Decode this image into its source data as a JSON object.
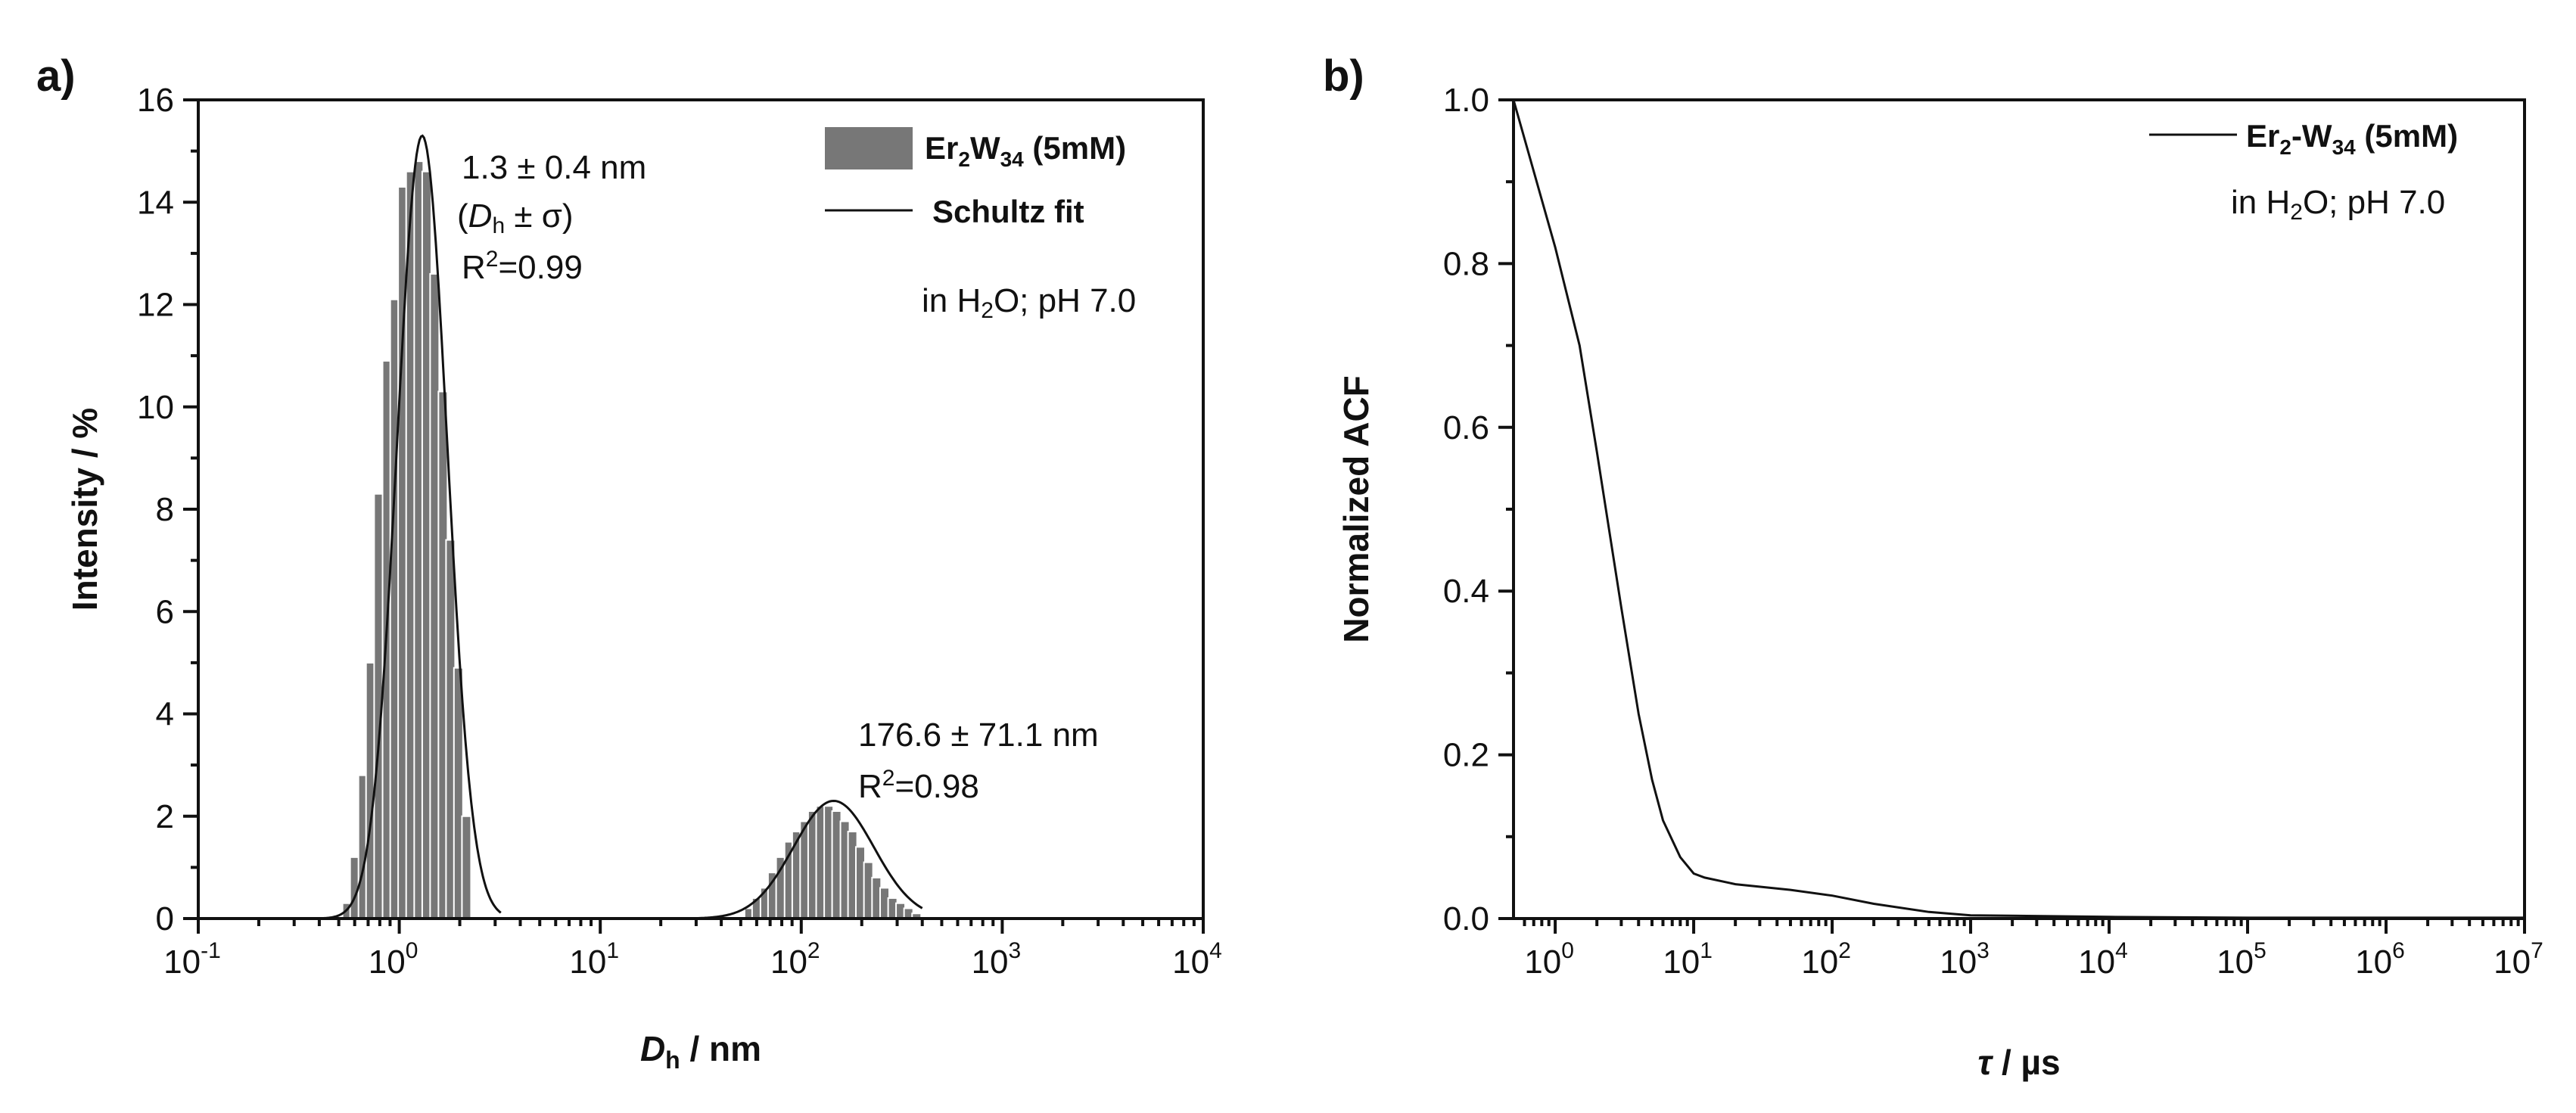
{
  "chart_data": [
    {
      "panel": "a)",
      "type": "bar",
      "xscale": "log",
      "xlim": [
        0.1,
        10000
      ],
      "ylim": [
        0,
        16
      ],
      "xlabel": {
        "italic": "D",
        "sub": "h",
        "rest": " / nm"
      },
      "ylabel": "Intensity / %",
      "xticks": [
        {
          "value": 0.1,
          "base": "10",
          "exp": "-1"
        },
        {
          "value": 1,
          "base": "10",
          "exp": "0"
        },
        {
          "value": 10,
          "base": "10",
          "exp": "1"
        },
        {
          "value": 100,
          "base": "10",
          "exp": "2"
        },
        {
          "value": 1000,
          "base": "10",
          "exp": "3"
        },
        {
          "value": 10000,
          "base": "10",
          "exp": "4"
        }
      ],
      "yticks": [
        0,
        2,
        4,
        6,
        8,
        10,
        12,
        14,
        16
      ],
      "series": [
        {
          "name": "Er2W34 (5mM)",
          "kind": "histogram",
          "x": [
            0.55,
            0.6,
            0.66,
            0.72,
            0.79,
            0.87,
            0.95,
            1.04,
            1.14,
            1.25,
            1.37,
            1.5,
            1.65,
            1.8,
            1.97,
            2.16,
            55,
            60,
            66,
            72,
            79,
            87,
            95,
            104,
            114,
            125,
            137,
            150,
            165,
            180,
            197,
            216,
            237,
            260,
            285,
            312,
            342,
            375
          ],
          "values": [
            0.3,
            1.2,
            2.8,
            5.0,
            8.3,
            10.9,
            12.1,
            14.3,
            14.6,
            14.8,
            14.6,
            12.6,
            10.3,
            7.4,
            4.9,
            2.0,
            0.2,
            0.4,
            0.6,
            0.9,
            1.2,
            1.5,
            1.7,
            1.9,
            2.1,
            2.2,
            2.2,
            2.1,
            1.9,
            1.7,
            1.4,
            1.1,
            0.8,
            0.6,
            0.4,
            0.3,
            0.2,
            0.1
          ]
        },
        {
          "name": "Schultz fit",
          "kind": "line",
          "peaks": [
            {
              "center": 1.3,
              "height": 15.3,
              "sigma_log": 0.125,
              "from": 0.42,
              "to": 3.2
            },
            {
              "center": 145,
              "height": 2.3,
              "sigma_log": 0.2,
              "from": 30,
              "to": 400
            }
          ]
        }
      ],
      "legend": [
        {
          "parts": [
            {
              "t": "Er"
            },
            {
              "t": "2",
              "sub": true
            },
            {
              "t": "W"
            },
            {
              "t": "34",
              "sub": true
            },
            {
              "t": " (5mM)"
            }
          ],
          "marker": "bar"
        },
        {
          "parts": [
            {
              "t": "Schultz fit"
            }
          ],
          "marker": "line"
        }
      ],
      "annotations": {
        "peak1_size": "1.3 ± 0.4 nm",
        "peak1_def_open": "(",
        "peak1_def_italic": "D",
        "peak1_def_sub": "h",
        "peak1_def_rest": " ± σ)",
        "peak1_r2_prefix": "R",
        "peak1_r2_sup": "2",
        "peak1_r2_value": "=0.99",
        "peak2_size": "176.6 ± 71.1 nm",
        "peak2_r2_prefix": "R",
        "peak2_r2_sup": "2",
        "peak2_r2_value": "=0.98",
        "medium_prefix": "in H",
        "medium_sub": "2",
        "medium_rest": "O; pH 7.0"
      }
    },
    {
      "panel": "b)",
      "type": "line",
      "xscale": "log",
      "xlim": [
        0.5,
        10000000
      ],
      "ylim": [
        0,
        1.0
      ],
      "xlabel": {
        "italic": "τ",
        "rest": " / µs"
      },
      "ylabel": "Normalized ACF",
      "xticks": [
        {
          "value": 1,
          "base": "10",
          "exp": "0"
        },
        {
          "value": 10,
          "base": "10",
          "exp": "1"
        },
        {
          "value": 100,
          "base": "10",
          "exp": "2"
        },
        {
          "value": 1000,
          "base": "10",
          "exp": "3"
        },
        {
          "value": 10000,
          "base": "10",
          "exp": "4"
        },
        {
          "value": 100000,
          "base": "10",
          "exp": "5"
        },
        {
          "value": 1000000,
          "base": "10",
          "exp": "6"
        },
        {
          "value": 10000000,
          "base": "10",
          "exp": "7"
        }
      ],
      "yticks": [
        0.0,
        0.2,
        0.4,
        0.6,
        0.8,
        1.0
      ],
      "series": [
        {
          "name": "Er2-W34 (5mM)",
          "x": [
            0.5,
            1,
            1.5,
            2,
            3,
            4,
            5,
            6,
            8,
            10,
            12,
            20,
            50,
            100,
            200,
            500,
            1000,
            10000,
            100000,
            1000000,
            10000000
          ],
          "y": [
            1.0,
            0.82,
            0.7,
            0.57,
            0.38,
            0.25,
            0.17,
            0.12,
            0.075,
            0.055,
            0.05,
            0.042,
            0.035,
            0.028,
            0.018,
            0.008,
            0.004,
            0.002,
            0.001,
            0.001,
            0.001
          ]
        }
      ],
      "legend": [
        {
          "parts": [
            {
              "t": "Er"
            },
            {
              "t": "2",
              "sub": true
            },
            {
              "t": "-W"
            },
            {
              "t": "34",
              "sub": true
            },
            {
              "t": " (5mM)"
            }
          ],
          "marker": "line"
        }
      ],
      "annotations": {
        "medium_prefix": "in H",
        "medium_sub": "2",
        "medium_rest": "O; pH 7.0"
      }
    }
  ]
}
